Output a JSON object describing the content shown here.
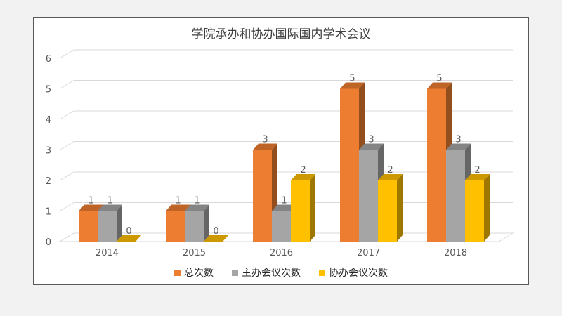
{
  "chart_data": {
    "type": "bar",
    "title": "学院承办和协办国际国内学术会议",
    "categories": [
      "2014",
      "2015",
      "2016",
      "2017",
      "2018"
    ],
    "series": [
      {
        "name": "总次数",
        "values": [
          1,
          1,
          3,
          5,
          5
        ],
        "color": "#ed7d31"
      },
      {
        "name": "主办会议次数",
        "values": [
          1,
          1,
          1,
          3,
          3
        ],
        "color": "#a5a5a5"
      },
      {
        "name": "协办会议次数",
        "values": [
          0,
          0,
          2,
          2,
          2
        ],
        "color": "#ffc000"
      }
    ],
    "yticks": [
      "0",
      "1",
      "2",
      "3",
      "4",
      "5",
      "6"
    ],
    "ylim": [
      0,
      6
    ],
    "grid": true,
    "data_labels": true,
    "legend_position": "bottom",
    "style": "3d-clustered-column"
  }
}
